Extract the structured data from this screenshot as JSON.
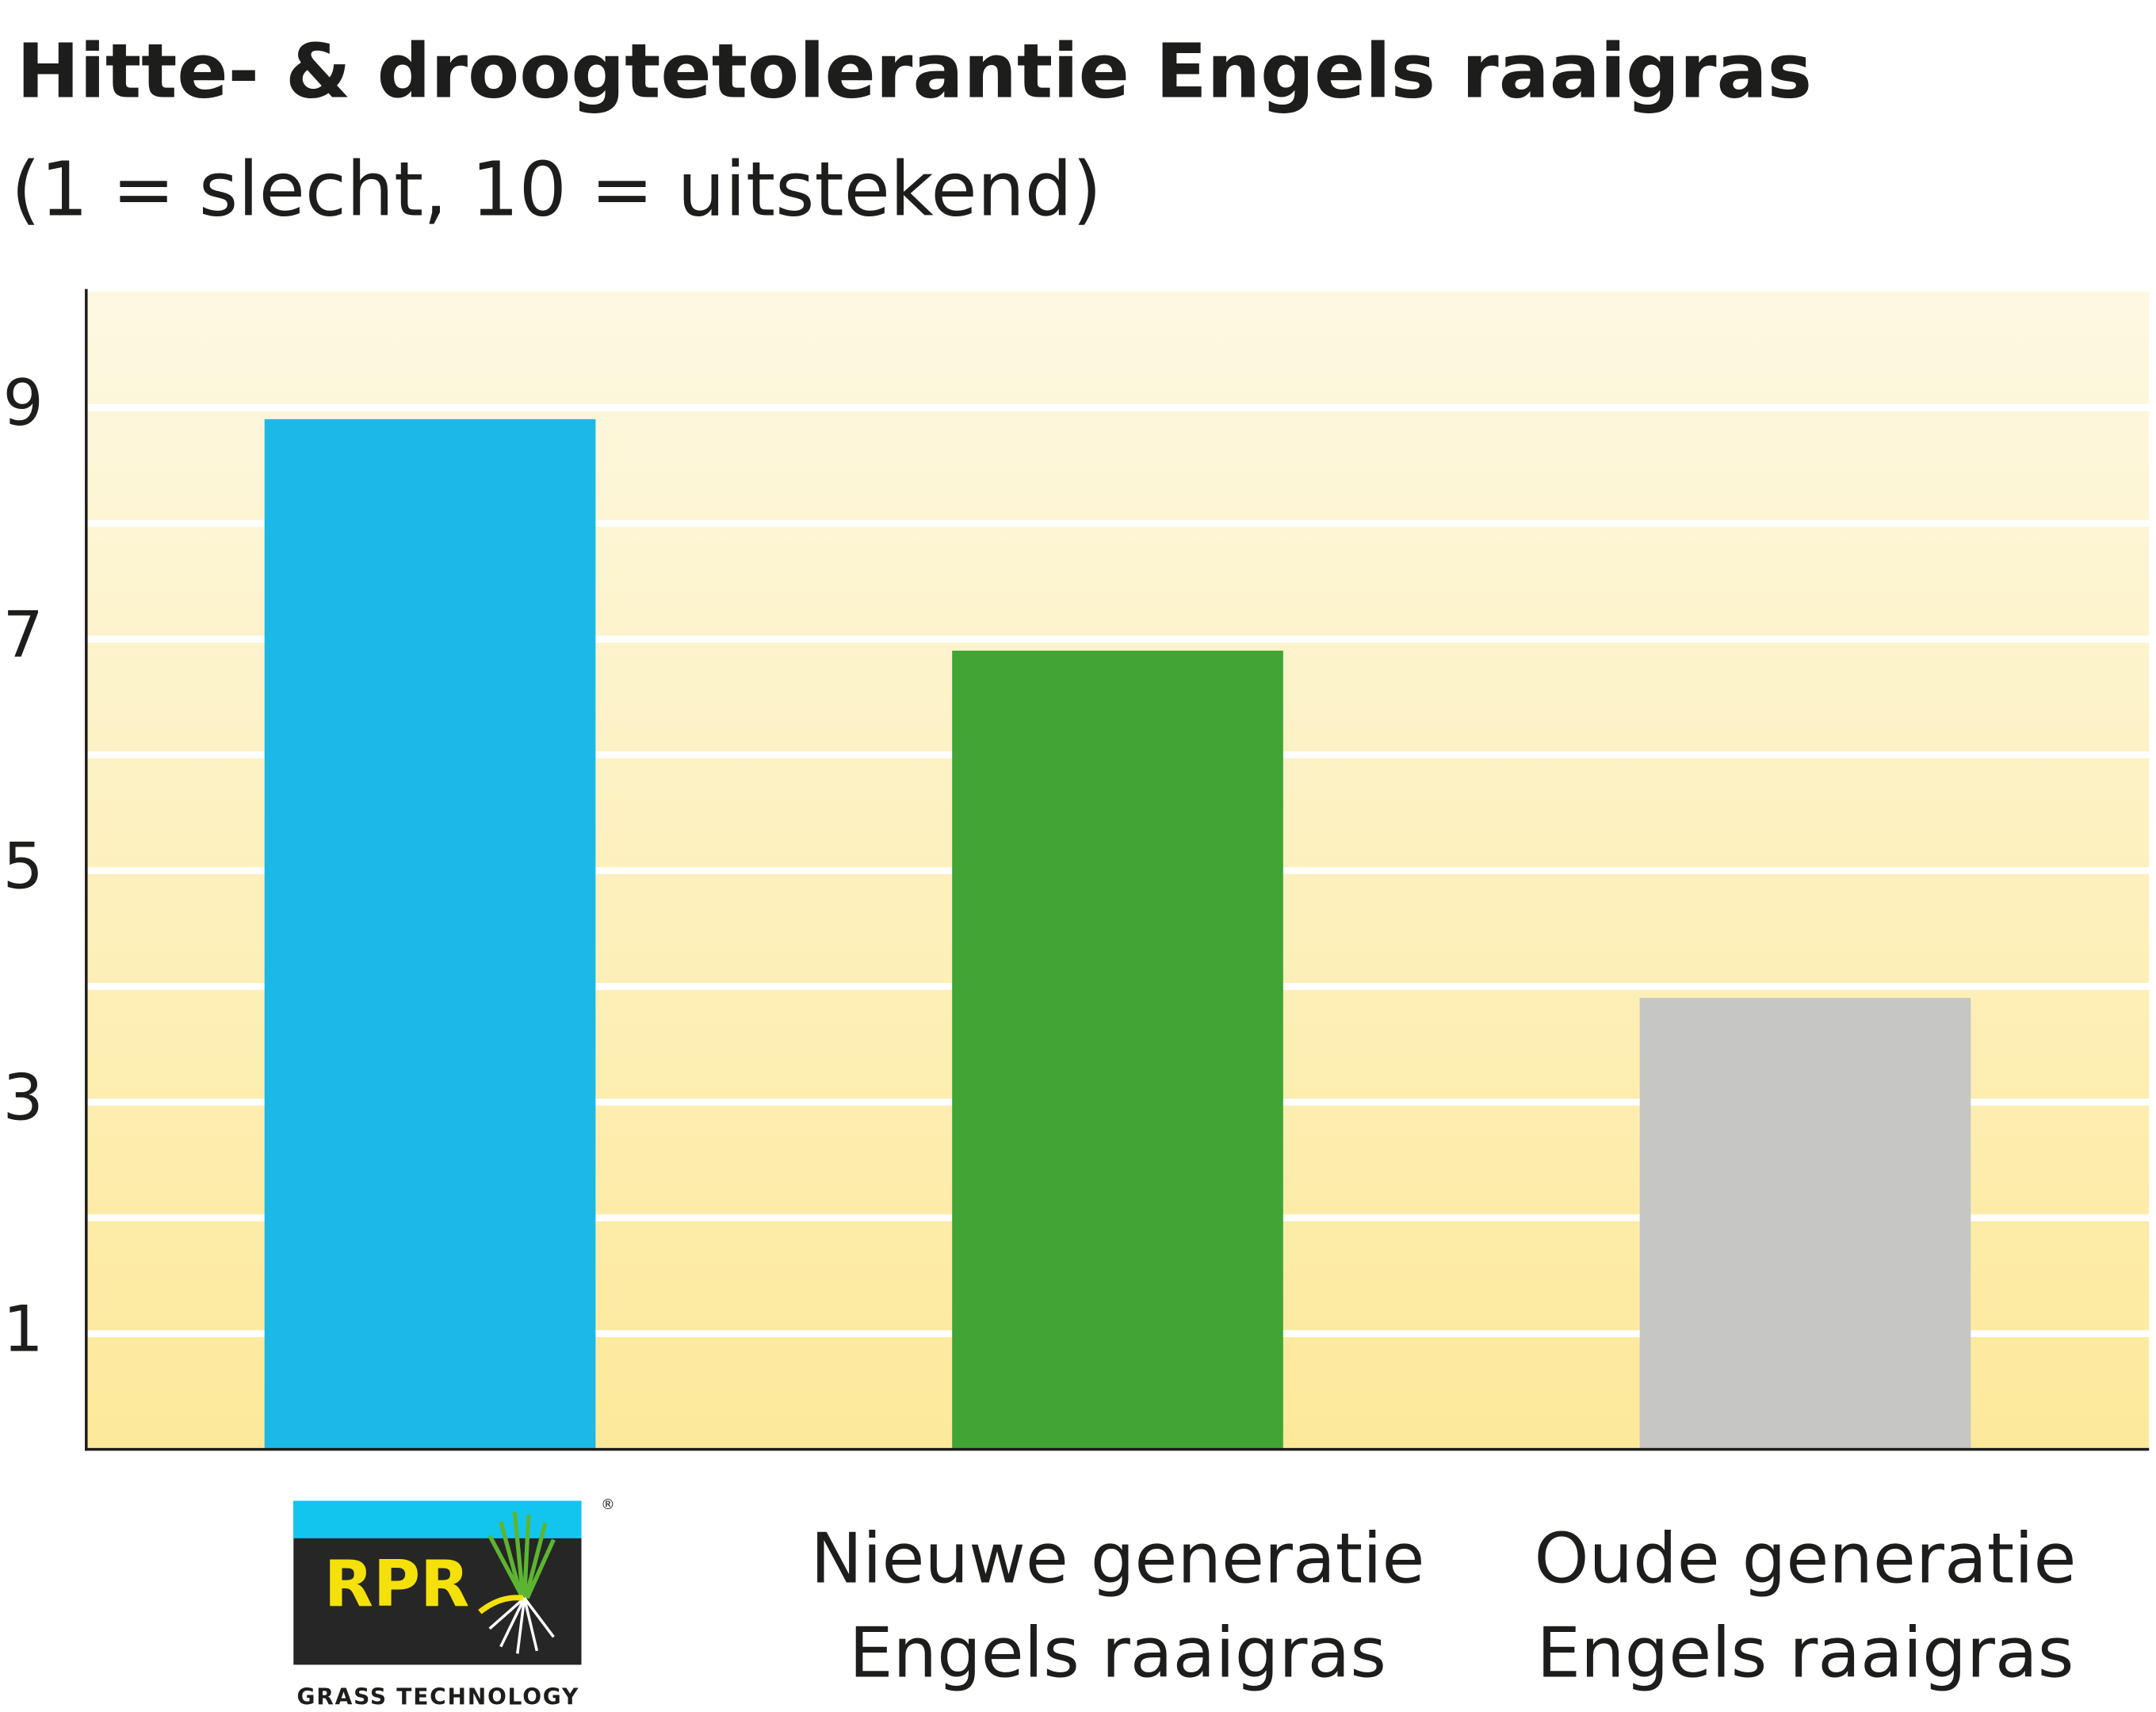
{
  "chart_data": {
    "type": "bar",
    "title": "Hitte- & droogtetolerantie Engels raaigras",
    "subtitle": "(1 = slecht, 10 = uitstekend)",
    "categories": [
      [
        "RPR"
      ],
      [
        "Nieuwe generatie",
        "Engels raaigras"
      ],
      [
        "Oude generatie",
        "Engels raaigras"
      ]
    ],
    "logo_text": "GRASS TECHNOLOGY",
    "logo_mark": "®",
    "values": [
      8.9,
      6.9,
      3.9
    ],
    "colors": [
      "#1cb9e6",
      "#41a535",
      "#c6c6c4"
    ],
    "ylim": [
      0,
      10
    ],
    "yticks": [
      1,
      3,
      5,
      7,
      9
    ],
    "minor_grid": [
      2,
      4,
      6,
      8
    ],
    "grid": true
  }
}
